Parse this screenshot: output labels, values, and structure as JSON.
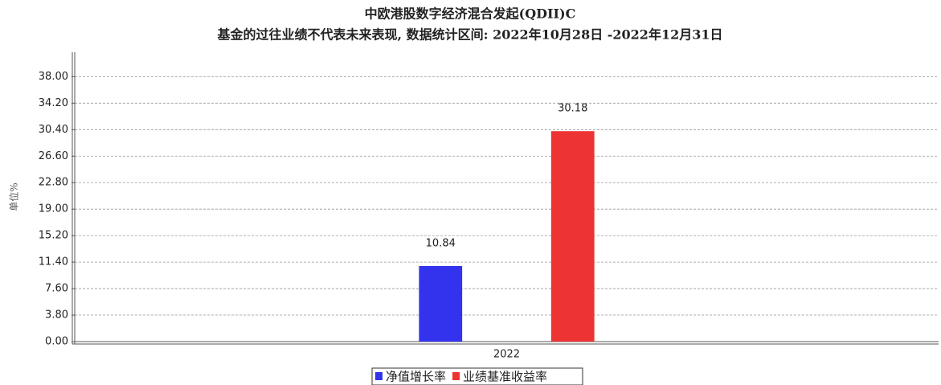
{
  "chart_data": {
    "type": "bar",
    "title": "中欧港股数字经济混合发起(QDII)C",
    "subtitle": "基金的过往业绩不代表未来表现, 数据统计区间: 2022年10月28日 -2022年12月31日",
    "y_label": "单位%",
    "categories": [
      "2022"
    ],
    "series": [
      {
        "name": "净值增长率",
        "color": "#3333ee",
        "values": [
          10.84
        ]
      },
      {
        "name": "业绩基准收益率",
        "color": "#ee3333",
        "values": [
          30.18
        ]
      }
    ],
    "ylim": [
      0,
      41.5
    ],
    "yticks": [
      {
        "value": 0,
        "label": "0.00"
      },
      {
        "value": 3.8,
        "label": "3.80"
      },
      {
        "value": 7.6,
        "label": "7.60"
      },
      {
        "value": 11.4,
        "label": "11.40"
      },
      {
        "value": 15.2,
        "label": "15.20"
      },
      {
        "value": 19,
        "label": "19.00"
      },
      {
        "value": 22.8,
        "label": "22.80"
      },
      {
        "value": 26.6,
        "label": "26.60"
      },
      {
        "value": 30.4,
        "label": "30.40"
      },
      {
        "value": 34.2,
        "label": "34.20"
      },
      {
        "value": 38,
        "label": "38.00"
      }
    ],
    "grid": true
  }
}
